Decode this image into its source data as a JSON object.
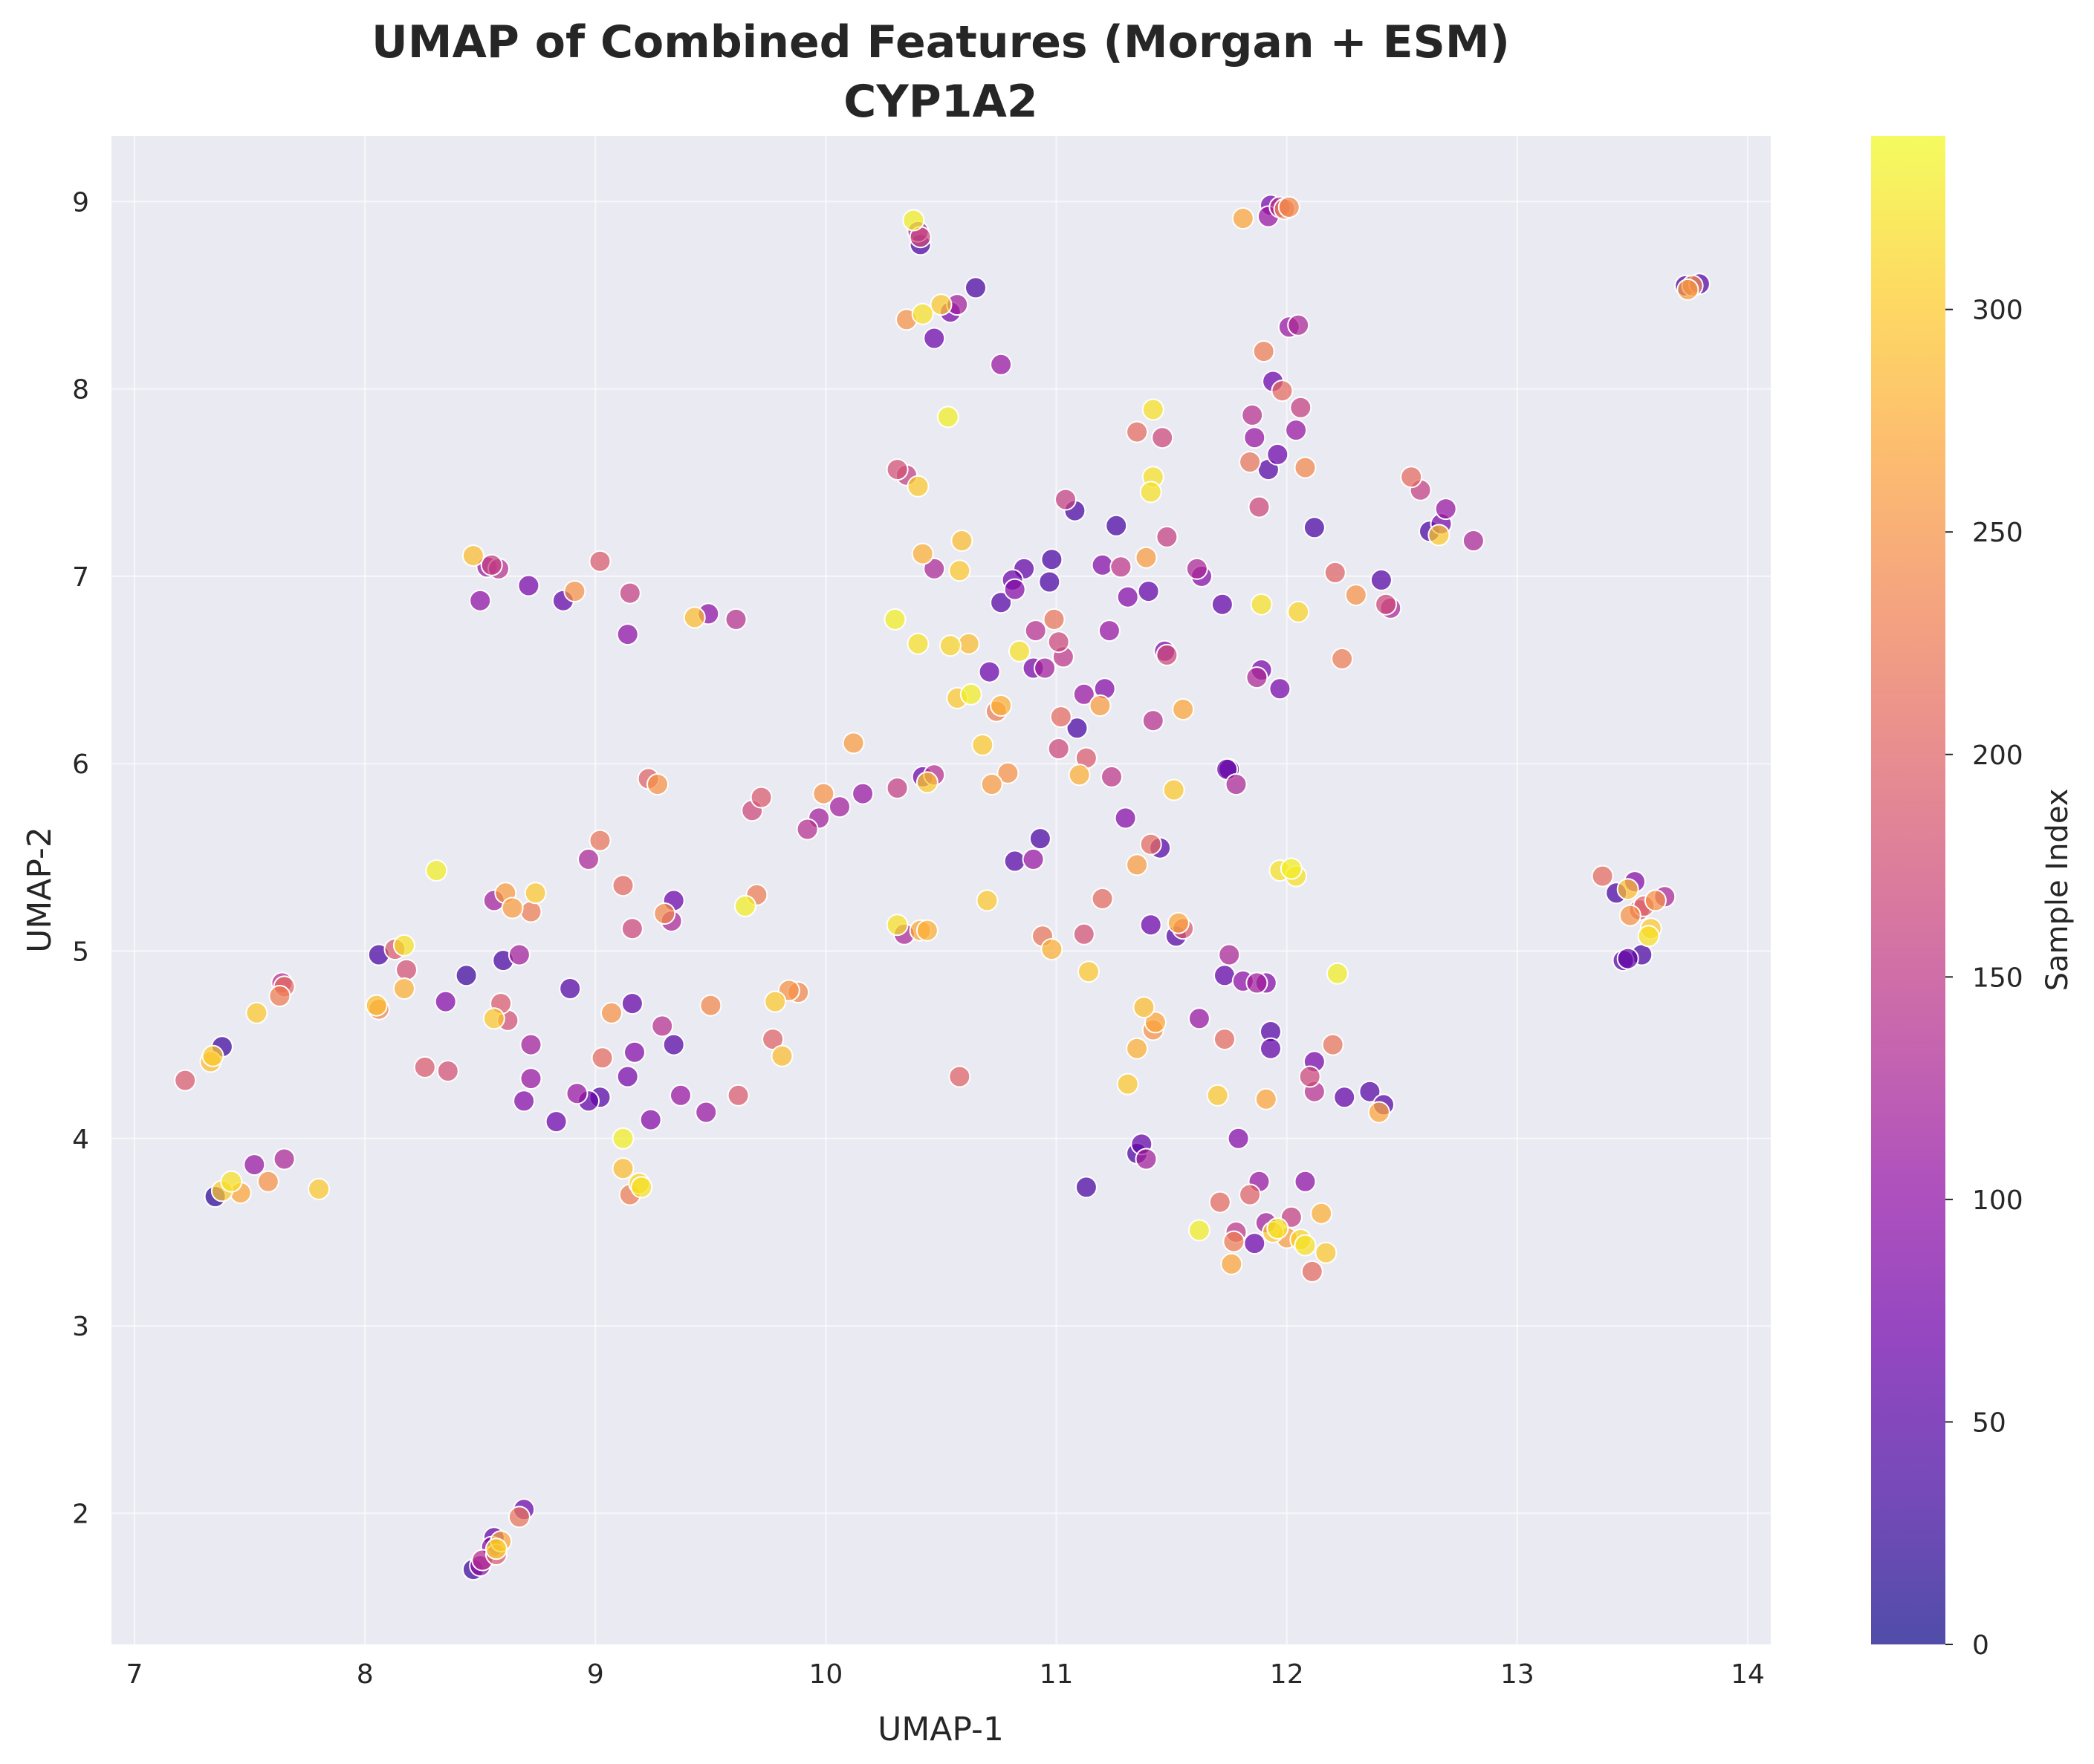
{
  "chart_data": {
    "type": "scatter",
    "title": "UMAP of Combined Features (Morgan + ESM)",
    "subtitle": "CYP1A2",
    "xlabel": "UMAP-1",
    "ylabel": "UMAP-2",
    "xlim": [
      6.9,
      14.1
    ],
    "ylim": [
      1.3,
      9.35
    ],
    "xticks": [
      7,
      8,
      9,
      10,
      11,
      12,
      13,
      14
    ],
    "yticks": [
      2,
      3,
      4,
      5,
      6,
      7,
      8,
      9
    ],
    "grid": true,
    "colorbar": {
      "label": "Sample Index",
      "colormap": "plasma",
      "range": [
        0,
        339
      ],
      "ticks": [
        0,
        50,
        100,
        150,
        200,
        250,
        300
      ]
    },
    "colors": {
      "plot_background": "#eaeaf2",
      "grid": "#ffffff",
      "text": "#262626"
    },
    "points": [
      [
        7.35,
        3.69,
        20
      ],
      [
        7.38,
        3.72,
        300
      ],
      [
        7.42,
        3.77,
        320
      ],
      [
        7.46,
        3.71,
        270
      ],
      [
        7.58,
        3.77,
        250
      ],
      [
        7.52,
        3.86,
        110
      ],
      [
        7.65,
        3.89,
        130
      ],
      [
        7.8,
        3.73,
        300
      ],
      [
        7.33,
        4.41,
        290
      ],
      [
        7.34,
        4.44,
        300
      ],
      [
        7.38,
        4.49,
        30
      ],
      [
        7.22,
        4.31,
        190
      ],
      [
        7.53,
        4.67,
        300
      ],
      [
        7.63,
        4.76,
        230
      ],
      [
        7.65,
        4.81,
        210
      ],
      [
        7.64,
        4.83,
        140
      ],
      [
        8.06,
        4.98,
        40
      ],
      [
        8.13,
        5.01,
        190
      ],
      [
        8.17,
        5.03,
        320
      ],
      [
        8.18,
        4.9,
        180
      ],
      [
        8.17,
        4.8,
        280
      ],
      [
        8.05,
        4.71,
        290
      ],
      [
        8.06,
        4.69,
        240
      ],
      [
        8.26,
        4.38,
        190
      ],
      [
        8.36,
        4.36,
        180
      ],
      [
        8.35,
        4.73,
        90
      ],
      [
        8.44,
        4.87,
        30
      ],
      [
        8.56,
        4.64,
        300
      ],
      [
        8.59,
        4.72,
        190
      ],
      [
        8.62,
        4.63,
        180
      ],
      [
        8.6,
        4.95,
        40
      ],
      [
        8.67,
        4.98,
        120
      ],
      [
        8.72,
        4.5,
        120
      ],
      [
        8.72,
        4.32,
        110
      ],
      [
        8.69,
        4.2,
        90
      ],
      [
        8.83,
        4.09,
        70
      ],
      [
        8.92,
        4.24,
        110
      ],
      [
        8.97,
        4.2,
        60
      ],
      [
        9.02,
        4.22,
        50
      ],
      [
        8.89,
        4.8,
        50
      ],
      [
        8.56,
        5.27,
        120
      ],
      [
        8.61,
        5.31,
        260
      ],
      [
        8.64,
        5.23,
        260
      ],
      [
        8.72,
        5.21,
        230
      ],
      [
        8.74,
        5.31,
        300
      ],
      [
        8.31,
        5.43,
        330
      ],
      [
        8.97,
        5.49,
        130
      ],
      [
        9.02,
        5.59,
        220
      ],
      [
        9.12,
        5.35,
        210
      ],
      [
        9.16,
        5.12,
        170
      ],
      [
        9.3,
        5.2,
        240
      ],
      [
        9.33,
        5.16,
        130
      ],
      [
        9.34,
        5.27,
        70
      ],
      [
        9.07,
        4.67,
        250
      ],
      [
        9.03,
        4.43,
        210
      ],
      [
        9.14,
        4.33,
        80
      ],
      [
        9.17,
        4.46,
        90
      ],
      [
        9.16,
        4.72,
        60
      ],
      [
        9.29,
        4.6,
        140
      ],
      [
        9.34,
        4.5,
        50
      ],
      [
        9.24,
        4.1,
        90
      ],
      [
        9.37,
        4.23,
        110
      ],
      [
        9.48,
        4.14,
        110
      ],
      [
        9.5,
        4.71,
        240
      ],
      [
        9.12,
        4.0,
        330
      ],
      [
        9.12,
        3.84,
        290
      ],
      [
        9.15,
        3.7,
        230
      ],
      [
        9.19,
        3.76,
        310
      ],
      [
        9.2,
        3.74,
        320
      ],
      [
        9.62,
        4.23,
        190
      ],
      [
        9.77,
        4.53,
        200
      ],
      [
        9.78,
        4.73,
        300
      ],
      [
        9.81,
        4.44,
        290
      ],
      [
        9.84,
        4.79,
        250
      ],
      [
        9.88,
        4.78,
        240
      ],
      [
        9.65,
        5.24,
        330
      ],
      [
        9.7,
        5.3,
        230
      ],
      [
        8.47,
        1.7,
        30
      ],
      [
        8.5,
        1.72,
        100
      ],
      [
        8.51,
        1.75,
        140
      ],
      [
        8.55,
        1.82,
        90
      ],
      [
        8.56,
        1.87,
        60
      ],
      [
        8.57,
        1.78,
        190
      ],
      [
        8.57,
        1.81,
        310
      ],
      [
        8.59,
        1.85,
        270
      ],
      [
        8.67,
        1.98,
        220
      ],
      [
        8.69,
        2.02,
        70
      ],
      [
        8.47,
        7.11,
        290
      ],
      [
        8.5,
        6.87,
        100
      ],
      [
        8.53,
        7.05,
        110
      ],
      [
        8.55,
        7.06,
        160
      ],
      [
        8.58,
        7.04,
        140
      ],
      [
        8.71,
        6.95,
        80
      ],
      [
        8.86,
        6.87,
        60
      ],
      [
        8.91,
        6.92,
        250
      ],
      [
        9.02,
        7.08,
        190
      ],
      [
        9.14,
        6.69,
        100
      ],
      [
        9.15,
        6.91,
        160
      ],
      [
        9.43,
        6.78,
        290
      ],
      [
        9.49,
        6.8,
        100
      ],
      [
        9.61,
        6.77,
        140
      ],
      [
        9.23,
        5.92,
        200
      ],
      [
        9.27,
        5.89,
        250
      ],
      [
        9.68,
        5.75,
        170
      ],
      [
        9.72,
        5.82,
        190
      ],
      [
        9.92,
        5.65,
        140
      ],
      [
        9.97,
        5.71,
        120
      ],
      [
        9.99,
        5.84,
        250
      ],
      [
        10.06,
        5.77,
        120
      ],
      [
        10.16,
        5.84,
        110
      ],
      [
        10.12,
        6.11,
        260
      ],
      [
        10.31,
        5.87,
        160
      ],
      [
        10.42,
        5.93,
        70
      ],
      [
        10.44,
        5.9,
        300
      ],
      [
        10.47,
        5.94,
        140
      ],
      [
        10.31,
        5.14,
        320
      ],
      [
        10.34,
        5.09,
        130
      ],
      [
        10.41,
        5.11,
        270
      ],
      [
        10.44,
        5.11,
        280
      ],
      [
        10.38,
        8.9,
        330
      ],
      [
        10.4,
        8.84,
        120
      ],
      [
        10.41,
        8.81,
        170
      ],
      [
        10.41,
        8.77,
        40
      ],
      [
        10.35,
        8.37,
        250
      ],
      [
        10.42,
        8.4,
        320
      ],
      [
        10.47,
        8.27,
        70
      ],
      [
        10.5,
        8.45,
        300
      ],
      [
        10.54,
        8.41,
        80
      ],
      [
        10.57,
        8.45,
        120
      ],
      [
        10.65,
        8.54,
        40
      ],
      [
        10.76,
        8.13,
        110
      ],
      [
        10.53,
        7.85,
        330
      ],
      [
        10.31,
        7.57,
        180
      ],
      [
        10.35,
        7.54,
        160
      ],
      [
        10.4,
        7.48,
        300
      ],
      [
        10.42,
        7.12,
        280
      ],
      [
        10.47,
        7.04,
        130
      ],
      [
        10.58,
        7.03,
        300
      ],
      [
        10.59,
        7.19,
        290
      ],
      [
        10.3,
        6.77,
        330
      ],
      [
        10.4,
        6.64,
        320
      ],
      [
        10.54,
        6.63,
        310
      ],
      [
        10.57,
        6.35,
        300
      ],
      [
        10.62,
        6.64,
        290
      ],
      [
        10.63,
        6.37,
        330
      ],
      [
        10.68,
        6.1,
        300
      ],
      [
        10.71,
        6.49,
        70
      ],
      [
        10.74,
        6.28,
        230
      ],
      [
        10.76,
        6.31,
        280
      ],
      [
        10.72,
        5.89,
        260
      ],
      [
        10.79,
        5.95,
        250
      ],
      [
        10.76,
        6.86,
        50
      ],
      [
        10.81,
        6.98,
        70
      ],
      [
        10.82,
        6.93,
        90
      ],
      [
        10.86,
        7.04,
        60
      ],
      [
        10.84,
        6.6,
        320
      ],
      [
        10.91,
        6.71,
        140
      ],
      [
        10.9,
        6.51,
        80
      ],
      [
        10.95,
        6.51,
        120
      ],
      [
        10.97,
        6.97,
        40
      ],
      [
        10.98,
        7.09,
        40
      ],
      [
        10.99,
        6.77,
        220
      ],
      [
        11.01,
        6.65,
        170
      ],
      [
        11.03,
        6.57,
        150
      ],
      [
        11.02,
        6.25,
        210
      ],
      [
        11.01,
        6.08,
        170
      ],
      [
        11.09,
        6.19,
        40
      ],
      [
        11.12,
        6.37,
        110
      ],
      [
        11.13,
        6.03,
        190
      ],
      [
        11.1,
        5.94,
        280
      ],
      [
        11.21,
        6.4,
        90
      ],
      [
        11.19,
        6.31,
        260
      ],
      [
        11.23,
        6.71,
        110
      ],
      [
        11.24,
        5.93,
        150
      ],
      [
        11.04,
        7.41,
        160
      ],
      [
        11.08,
        7.35,
        40
      ],
      [
        11.26,
        7.27,
        40
      ],
      [
        11.2,
        7.06,
        90
      ],
      [
        11.28,
        7.05,
        150
      ],
      [
        11.31,
        6.89,
        90
      ],
      [
        11.4,
        6.92,
        60
      ],
      [
        11.35,
        7.77,
        210
      ],
      [
        11.42,
        7.89,
        320
      ],
      [
        11.46,
        7.74,
        170
      ],
      [
        11.42,
        7.53,
        320
      ],
      [
        11.41,
        7.45,
        320
      ],
      [
        11.48,
        7.21,
        160
      ],
      [
        11.39,
        7.1,
        260
      ],
      [
        11.42,
        6.23,
        140
      ],
      [
        11.47,
        6.6,
        90
      ],
      [
        11.48,
        6.58,
        170
      ],
      [
        11.55,
        6.29,
        270
      ],
      [
        11.61,
        7.04,
        130
      ],
      [
        11.63,
        7.0,
        90
      ],
      [
        11.72,
        6.85,
        60
      ],
      [
        11.3,
        5.71,
        90
      ],
      [
        11.35,
        5.46,
        260
      ],
      [
        11.41,
        5.57,
        210
      ],
      [
        11.45,
        5.55,
        50
      ],
      [
        11.51,
        5.86,
        300
      ],
      [
        11.53,
        5.15,
        270
      ],
      [
        11.55,
        5.12,
        190
      ],
      [
        11.52,
        5.08,
        50
      ],
      [
        11.41,
        5.14,
        70
      ],
      [
        10.7,
        5.27,
        300
      ],
      [
        10.82,
        5.48,
        50
      ],
      [
        10.9,
        5.49,
        110
      ],
      [
        10.93,
        5.6,
        40
      ],
      [
        10.94,
        5.08,
        220
      ],
      [
        10.98,
        5.01,
        280
      ],
      [
        11.12,
        5.09,
        180
      ],
      [
        11.14,
        4.89,
        300
      ],
      [
        11.2,
        5.28,
        210
      ],
      [
        10.58,
        4.33,
        200
      ],
      [
        11.13,
        3.74,
        40
      ],
      [
        11.31,
        4.29,
        300
      ],
      [
        11.35,
        4.48,
        280
      ],
      [
        11.38,
        4.7,
        290
      ],
      [
        11.42,
        4.58,
        250
      ],
      [
        11.43,
        4.62,
        270
      ],
      [
        11.35,
        3.92,
        40
      ],
      [
        11.37,
        3.97,
        60
      ],
      [
        11.39,
        3.89,
        120
      ],
      [
        11.62,
        4.64,
        110
      ],
      [
        11.73,
        4.53,
        210
      ],
      [
        11.73,
        4.87,
        60
      ],
      [
        11.75,
        4.98,
        130
      ],
      [
        11.81,
        4.84,
        100
      ],
      [
        11.87,
        4.83,
        120
      ],
      [
        11.91,
        4.83,
        90
      ],
      [
        11.93,
        4.57,
        50
      ],
      [
        11.93,
        4.48,
        60
      ],
      [
        11.79,
        4.0,
        90
      ],
      [
        11.7,
        4.23,
        300
      ],
      [
        11.71,
        3.66,
        210
      ],
      [
        11.78,
        3.5,
        150
      ],
      [
        11.77,
        3.45,
        230
      ],
      [
        11.76,
        3.33,
        270
      ],
      [
        11.84,
        3.7,
        200
      ],
      [
        11.88,
        3.77,
        110
      ],
      [
        11.86,
        3.44,
        70
      ],
      [
        11.91,
        3.55,
        120
      ],
      [
        11.94,
        3.5,
        300
      ],
      [
        11.96,
        3.52,
        320
      ],
      [
        12.0,
        3.47,
        260
      ],
      [
        11.62,
        3.51,
        330
      ],
      [
        12.02,
        3.58,
        160
      ],
      [
        12.06,
        3.46,
        310
      ],
      [
        12.08,
        3.43,
        320
      ],
      [
        12.11,
        3.29,
        210
      ],
      [
        12.15,
        3.6,
        280
      ],
      [
        12.17,
        3.39,
        300
      ],
      [
        12.08,
        3.77,
        100
      ],
      [
        12.1,
        4.33,
        170
      ],
      [
        12.12,
        4.25,
        140
      ],
      [
        12.12,
        4.41,
        80
      ],
      [
        12.2,
        4.5,
        220
      ],
      [
        12.25,
        4.22,
        60
      ],
      [
        12.36,
        4.25,
        50
      ],
      [
        12.4,
        4.14,
        270
      ],
      [
        12.42,
        4.18,
        50
      ],
      [
        11.91,
        4.21,
        270
      ],
      [
        12.22,
        4.88,
        330
      ],
      [
        11.75,
        5.97,
        40
      ],
      [
        11.74,
        5.97,
        70
      ],
      [
        11.78,
        5.89,
        130
      ],
      [
        11.97,
        5.43,
        320
      ],
      [
        12.02,
        5.44,
        330
      ],
      [
        12.04,
        5.4,
        320
      ],
      [
        11.87,
        6.46,
        130
      ],
      [
        11.89,
        6.5,
        80
      ],
      [
        11.97,
        6.4,
        80
      ],
      [
        11.89,
        6.85,
        320
      ],
      [
        12.05,
        6.81,
        310
      ],
      [
        12.21,
        7.02,
        200
      ],
      [
        12.24,
        6.56,
        230
      ],
      [
        12.3,
        6.9,
        250
      ],
      [
        12.41,
        6.98,
        50
      ],
      [
        12.43,
        6.85,
        170
      ],
      [
        12.45,
        6.83,
        130
      ],
      [
        11.84,
        7.61,
        220
      ],
      [
        11.88,
        7.37,
        170
      ],
      [
        11.85,
        7.86,
        140
      ],
      [
        11.86,
        7.74,
        110
      ],
      [
        11.92,
        7.57,
        50
      ],
      [
        11.96,
        7.65,
        70
      ],
      [
        11.94,
        8.04,
        70
      ],
      [
        11.98,
        7.99,
        210
      ],
      [
        12.04,
        7.78,
        110
      ],
      [
        12.06,
        7.9,
        160
      ],
      [
        12.08,
        7.58,
        240
      ],
      [
        12.12,
        7.26,
        40
      ],
      [
        11.9,
        8.2,
        230
      ],
      [
        12.01,
        8.33,
        110
      ],
      [
        12.05,
        8.34,
        130
      ],
      [
        11.93,
        8.98,
        80
      ],
      [
        11.92,
        8.92,
        110
      ],
      [
        11.97,
        8.97,
        140
      ],
      [
        11.99,
        8.96,
        230
      ],
      [
        12.01,
        8.97,
        240
      ],
      [
        11.81,
        8.91,
        270
      ],
      [
        12.54,
        7.53,
        210
      ],
      [
        12.58,
        7.46,
        160
      ],
      [
        12.62,
        7.24,
        40
      ],
      [
        12.66,
        7.22,
        300
      ],
      [
        12.67,
        7.28,
        80
      ],
      [
        12.69,
        7.36,
        110
      ],
      [
        12.81,
        7.19,
        130
      ],
      [
        13.37,
        5.4,
        210
      ],
      [
        13.43,
        5.31,
        40
      ],
      [
        13.48,
        5.33,
        290
      ],
      [
        13.49,
        5.19,
        250
      ],
      [
        13.51,
        5.37,
        90
      ],
      [
        13.53,
        5.22,
        180
      ],
      [
        13.55,
        5.24,
        200
      ],
      [
        13.58,
        5.12,
        300
      ],
      [
        13.57,
        5.08,
        320
      ],
      [
        13.6,
        5.27,
        250
      ],
      [
        13.64,
        5.29,
        130
      ],
      [
        13.46,
        4.95,
        50
      ],
      [
        13.48,
        4.96,
        60
      ],
      [
        13.54,
        4.98,
        40
      ],
      [
        13.73,
        8.55,
        40
      ],
      [
        13.74,
        8.53,
        260
      ],
      [
        13.76,
        8.55,
        240
      ],
      [
        13.79,
        8.56,
        50
      ]
    ]
  }
}
